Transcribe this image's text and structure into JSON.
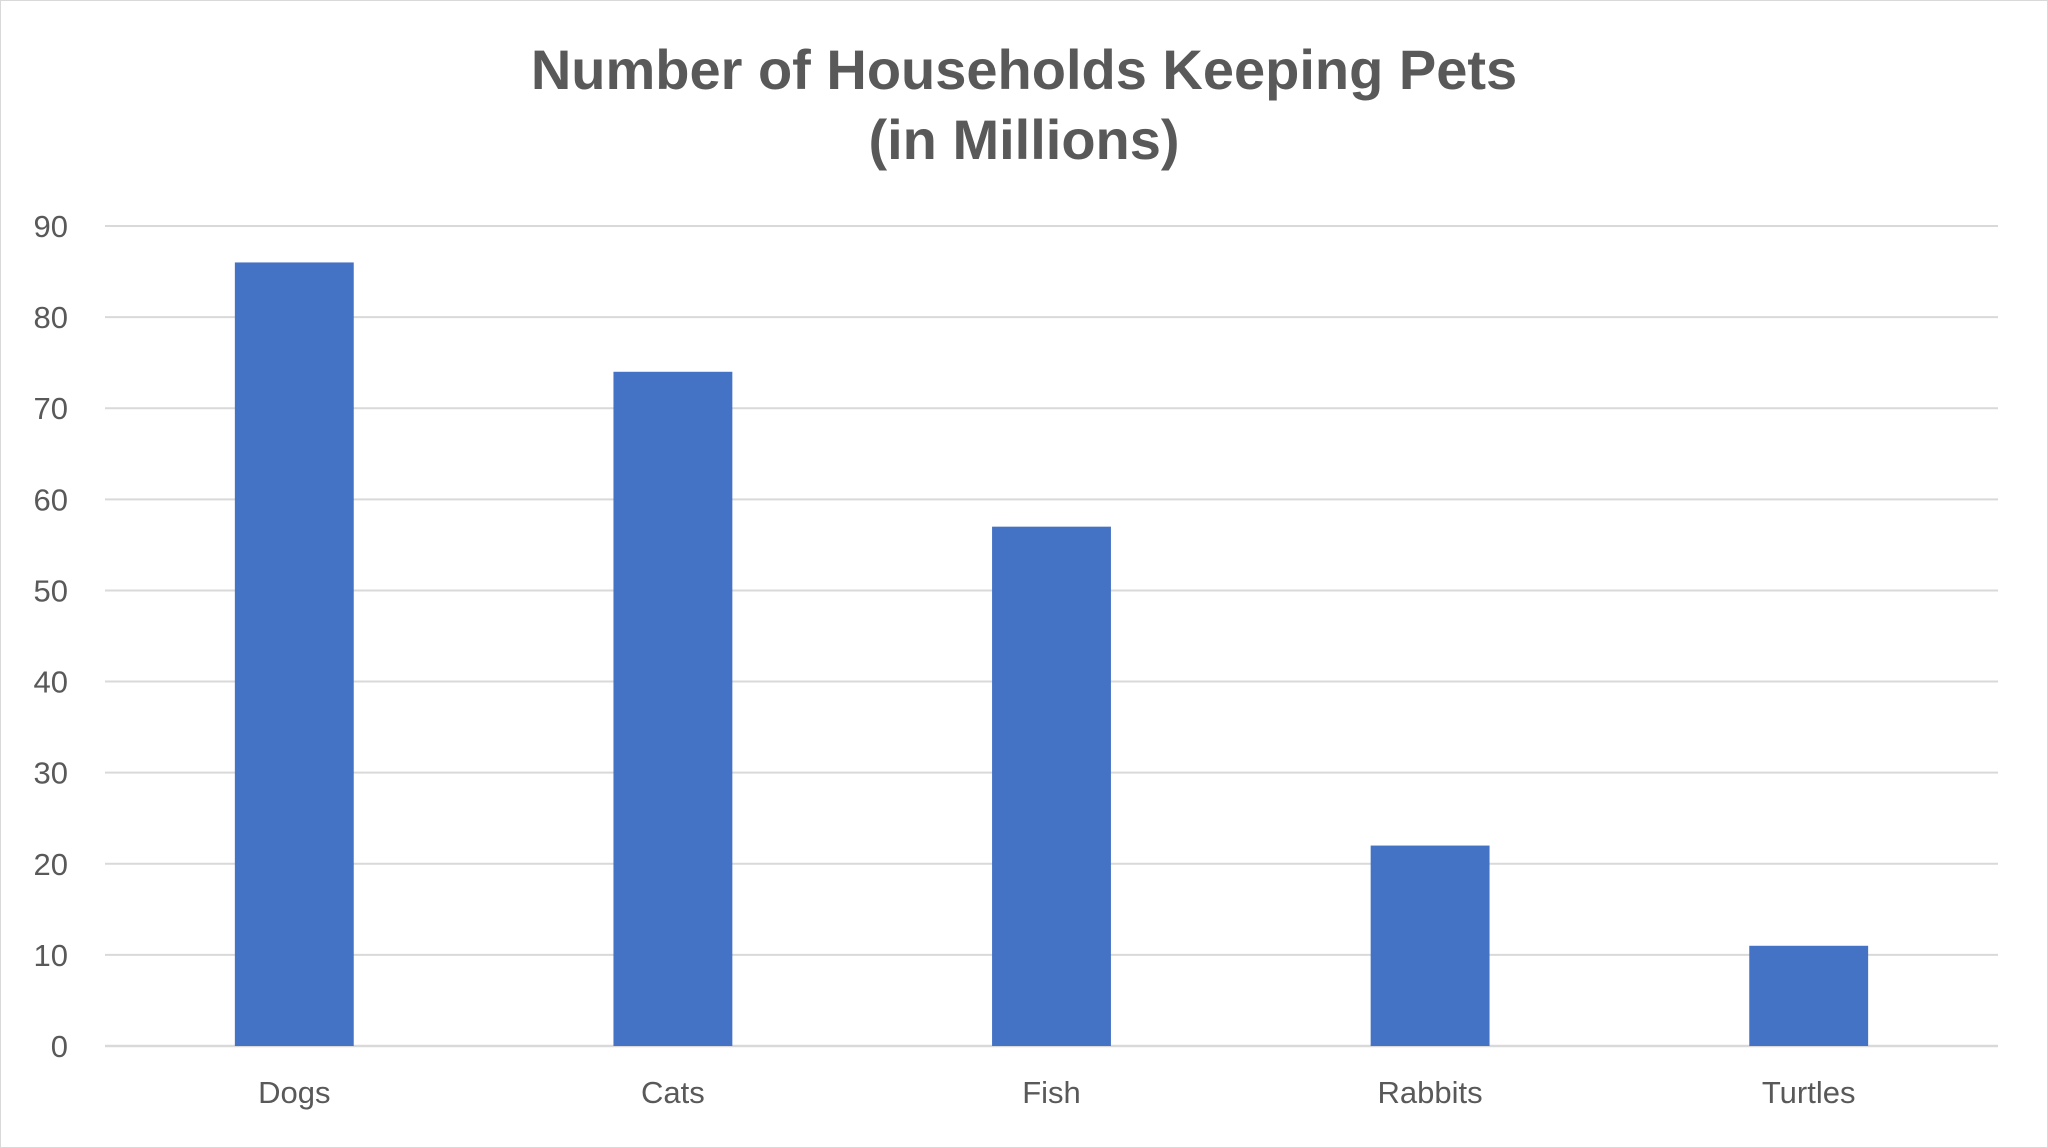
{
  "colors": {
    "bar": "#4472C4",
    "gridline": "#d9d9d9",
    "text": "#595959",
    "background": "#ffffff"
  },
  "chart_data": {
    "type": "bar",
    "title": "Number of Households Keeping Pets",
    "subtitle": "(in Millions)",
    "categories": [
      "Dogs",
      "Cats",
      "Fish",
      "Rabbits",
      "Turtles"
    ],
    "values": [
      86,
      74,
      57,
      22,
      11
    ],
    "xlabel": "",
    "ylabel": "",
    "ylim": [
      0,
      90
    ],
    "yticks": [
      0,
      10,
      20,
      30,
      40,
      50,
      60,
      70,
      80,
      90
    ],
    "grid": true,
    "legend": "none"
  }
}
